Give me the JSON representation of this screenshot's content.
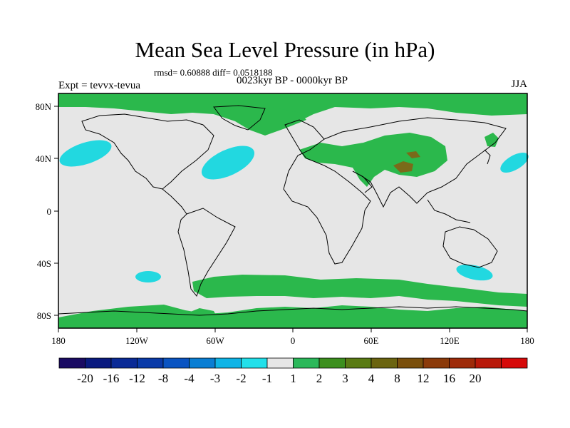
{
  "header": {
    "title": "Mean Sea Level Pressure (in hPa)",
    "stats": "rmsd= 0.60888 diff= 0.0518188",
    "period": "0023kyr BP - 0000kyr BP",
    "experiment": "Expt = tevvx-tevua",
    "season": "JJA"
  },
  "axes": {
    "x_ticks": [
      "180",
      "120W",
      "60W",
      "0",
      "60E",
      "120E",
      "180"
    ],
    "y_ticks": [
      "80N",
      "40N",
      "0",
      "40S",
      "80S"
    ]
  },
  "colorbar": {
    "colors": [
      "#1a0b63",
      "#0a1a7f",
      "#0a2a96",
      "#0a3aa8",
      "#0a54c2",
      "#0a7ed3",
      "#0fb4e6",
      "#22e0ea",
      "#e6e6e6",
      "#2bb85a",
      "#3c8f1e",
      "#5a7b14",
      "#6b6410",
      "#7a4f0c",
      "#8b3a0a",
      "#9e2b0a",
      "#b8190a",
      "#d60a0a"
    ],
    "labels": [
      "-20",
      "-16",
      "-12",
      "-8",
      "-4",
      "-3",
      "-2",
      "-1",
      "1",
      "2",
      "3",
      "4",
      "8",
      "12",
      "16",
      "20"
    ]
  },
  "map_colors": {
    "ocean_neutral": "#e6e6e6",
    "positive": "#2bb84c",
    "negative": "#22d8e0",
    "strong_positive": "#5a7b14"
  }
}
